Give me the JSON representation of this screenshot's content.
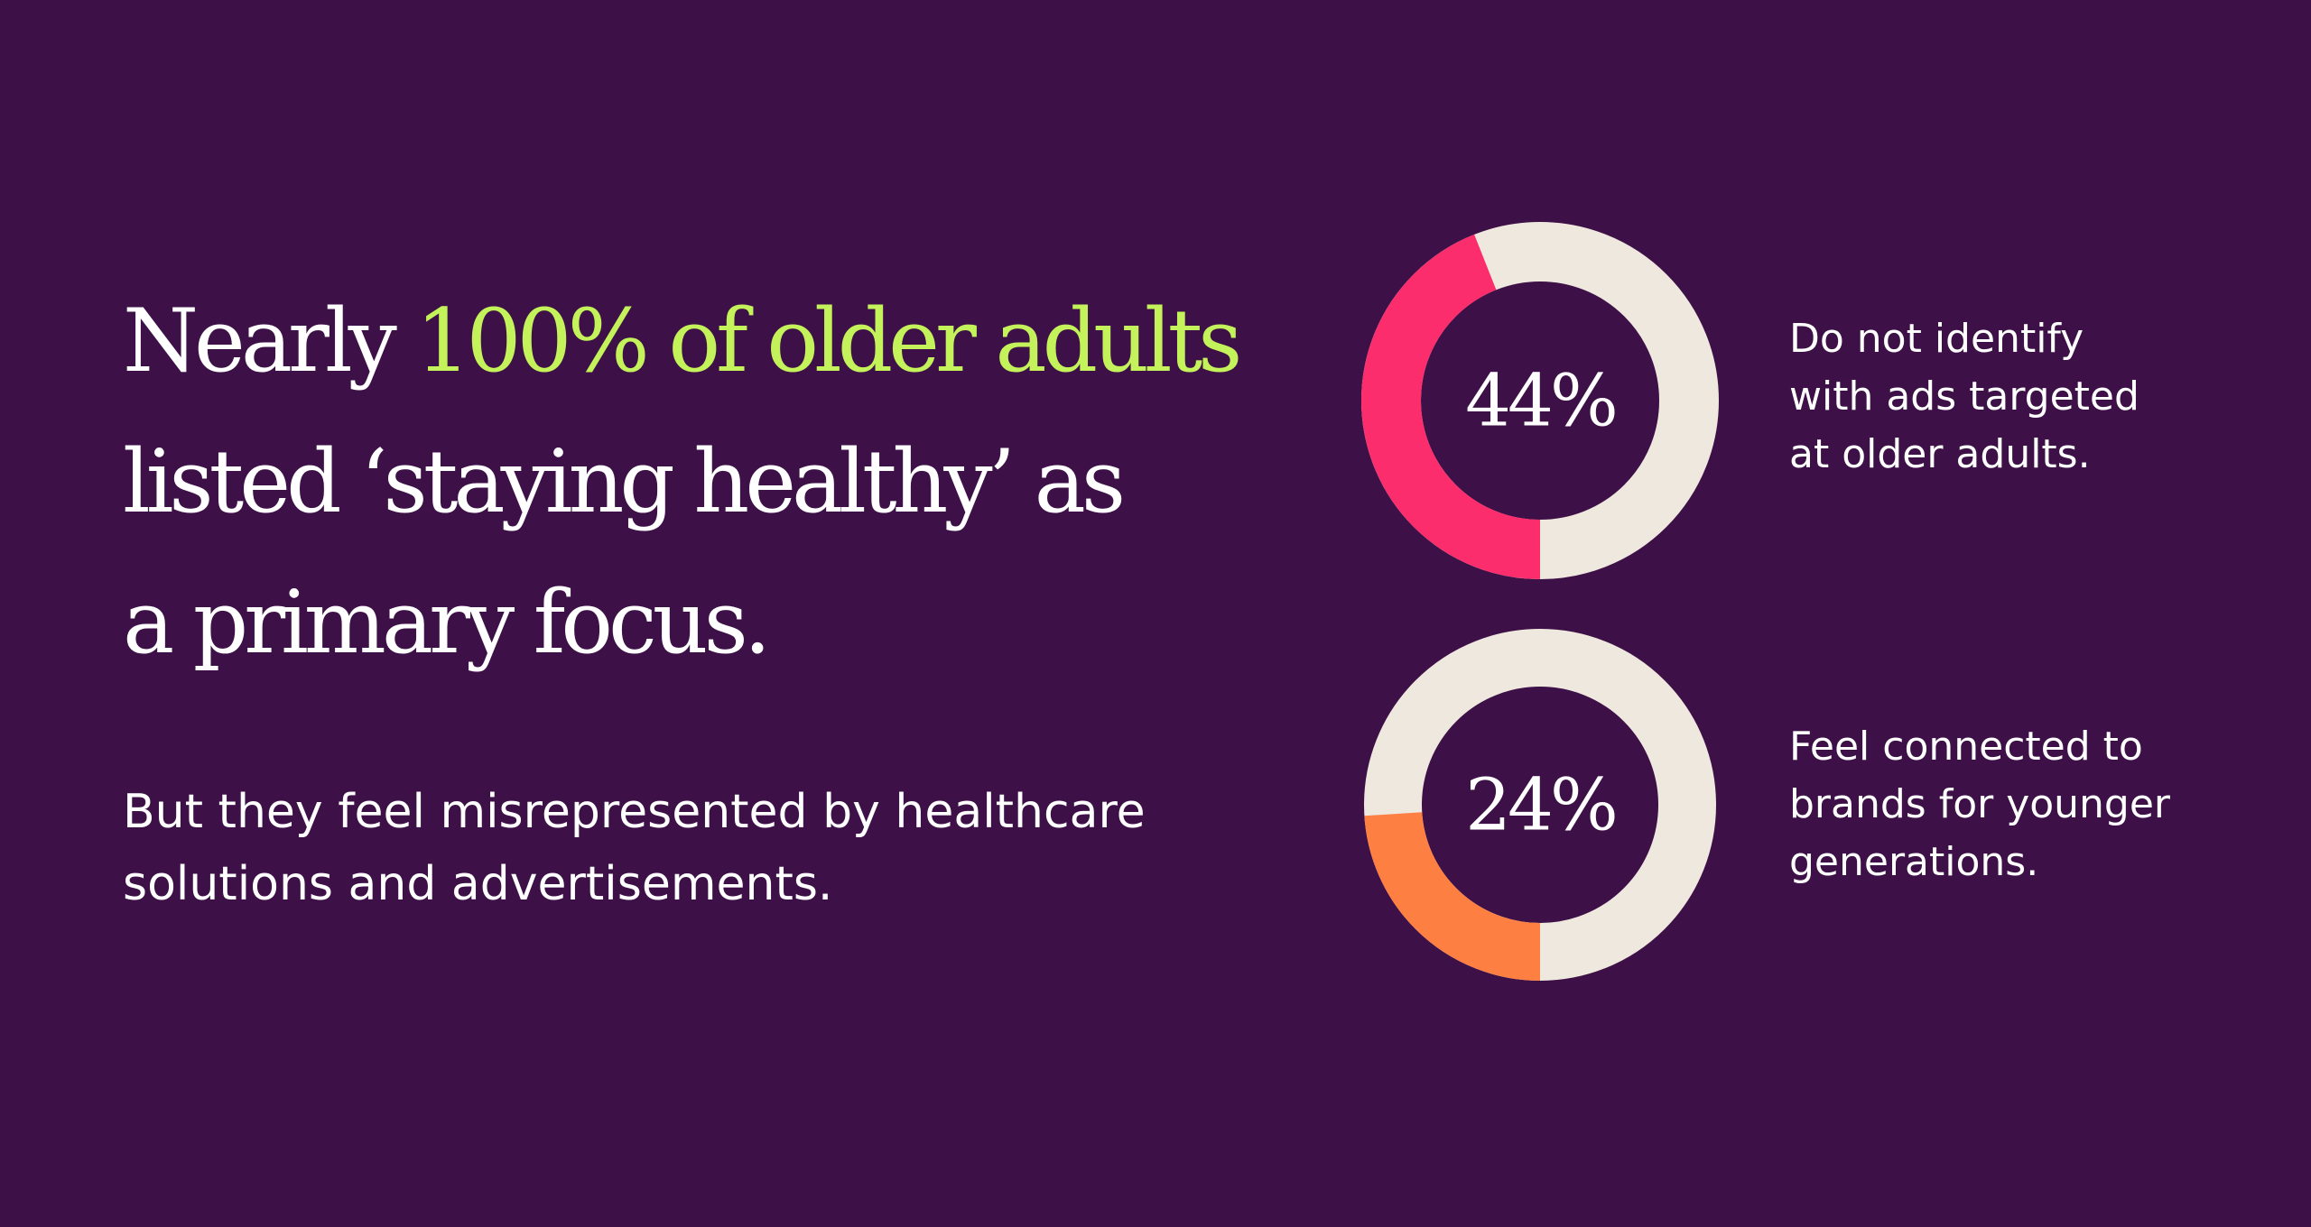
{
  "headline": {
    "lead": "Nearly ",
    "highlight": "100% of older adults",
    "line2": "listed ‘staying healthy’ as",
    "line3": "a primary focus."
  },
  "subtext": {
    "line1": "But they feel misrepresented by healthcare",
    "line2": "solutions and advertisements."
  },
  "colors": {
    "background": "#3d1147",
    "highlight": "#c4f25a",
    "text": "#ffffff",
    "ring_remainder": "#efe8de"
  },
  "chart_data": [
    {
      "type": "pie",
      "value_label": "44%",
      "value": 44,
      "color": "#fb2d6c",
      "remainder_color": "#efe8de",
      "label_lines": [
        "Do not identify",
        "with ads targeted",
        "at older adults."
      ]
    },
    {
      "type": "pie",
      "value_label": "24%",
      "value": 24,
      "color": "#fd7f42",
      "remainder_color": "#efe8de",
      "label_lines": [
        "Feel connected to",
        "brands for younger",
        "generations."
      ]
    }
  ]
}
